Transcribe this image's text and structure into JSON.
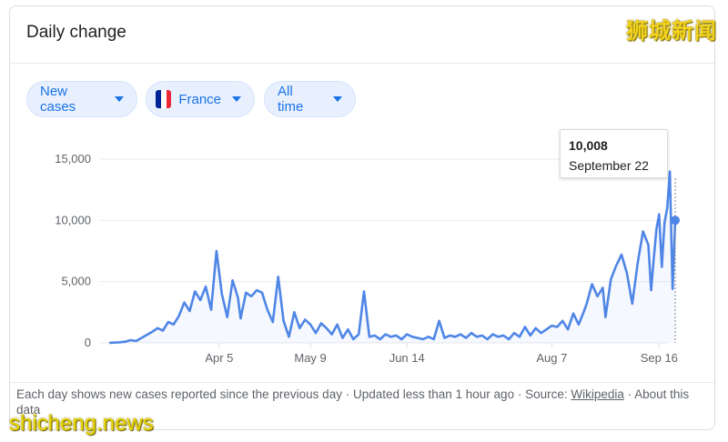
{
  "card": {
    "title": "Daily change"
  },
  "filters": {
    "metric": "New cases",
    "country": "France",
    "range": "All time"
  },
  "colors": {
    "line": "#4f86e6",
    "flag_blue": "#002395",
    "flag_white": "#ffffff",
    "flag_red": "#ed2939",
    "chip_text": "#1a73e8"
  },
  "tooltip": {
    "value": "10,008",
    "date": "September 22"
  },
  "footer": {
    "text": "Each day shows new cases reported since the previous day · Updated less than 1 hour ago · Source: ",
    "source_link": "Wikipedia",
    "after": " · About this data"
  },
  "watermarks": {
    "top": "狮城新闻",
    "bottom": "shicheng.news"
  },
  "chart_data": {
    "type": "line",
    "title": "Daily change",
    "xlabel": "",
    "ylabel": "",
    "ylim": [
      0,
      15000
    ],
    "yticks": [
      0,
      5000,
      10000,
      15000
    ],
    "ytick_labels": [
      "0",
      "5,000",
      "10,000",
      "15,000"
    ],
    "x_start": "2020-02-24",
    "x_end": "2020-09-22",
    "xticks": [
      "Apr 5",
      "May 9",
      "Jun 14",
      "Aug 7",
      "Sep 16"
    ],
    "xtick_dates": [
      "2020-04-05",
      "2020-05-09",
      "2020-06-14",
      "2020-08-07",
      "2020-09-16"
    ],
    "grid": true,
    "highlight": {
      "date": "2020-09-22",
      "value": 10008
    },
    "series": [
      {
        "name": "",
        "points": [
          [
            "2020-02-24",
            0
          ],
          [
            "2020-02-26",
            20
          ],
          [
            "2020-02-28",
            50
          ],
          [
            "2020-03-01",
            100
          ],
          [
            "2020-03-03",
            220
          ],
          [
            "2020-03-05",
            150
          ],
          [
            "2020-03-07",
            400
          ],
          [
            "2020-03-09",
            650
          ],
          [
            "2020-03-11",
            900
          ],
          [
            "2020-03-13",
            1200
          ],
          [
            "2020-03-15",
            1000
          ],
          [
            "2020-03-17",
            1700
          ],
          [
            "2020-03-19",
            1500
          ],
          [
            "2020-03-21",
            2200
          ],
          [
            "2020-03-23",
            3300
          ],
          [
            "2020-03-25",
            2600
          ],
          [
            "2020-03-27",
            4200
          ],
          [
            "2020-03-29",
            3500
          ],
          [
            "2020-03-31",
            4600
          ],
          [
            "2020-04-02",
            2700
          ],
          [
            "2020-04-04",
            7500
          ],
          [
            "2020-04-06",
            4000
          ],
          [
            "2020-04-08",
            2100
          ],
          [
            "2020-04-10",
            5100
          ],
          [
            "2020-04-12",
            3700
          ],
          [
            "2020-04-13",
            2000
          ],
          [
            "2020-04-15",
            4100
          ],
          [
            "2020-04-17",
            3800
          ],
          [
            "2020-04-19",
            4300
          ],
          [
            "2020-04-21",
            4100
          ],
          [
            "2020-04-23",
            2700
          ],
          [
            "2020-04-25",
            1700
          ],
          [
            "2020-04-27",
            5400
          ],
          [
            "2020-04-29",
            1800
          ],
          [
            "2020-05-01",
            500
          ],
          [
            "2020-05-03",
            2500
          ],
          [
            "2020-05-05",
            1200
          ],
          [
            "2020-05-07",
            1900
          ],
          [
            "2020-05-09",
            1500
          ],
          [
            "2020-05-11",
            800
          ],
          [
            "2020-05-13",
            1600
          ],
          [
            "2020-05-15",
            1200
          ],
          [
            "2020-05-17",
            700
          ],
          [
            "2020-05-19",
            1500
          ],
          [
            "2020-05-21",
            400
          ],
          [
            "2020-05-23",
            1100
          ],
          [
            "2020-05-25",
            300
          ],
          [
            "2020-05-27",
            700
          ],
          [
            "2020-05-29",
            4200
          ],
          [
            "2020-05-31",
            500
          ],
          [
            "2020-06-02",
            600
          ],
          [
            "2020-06-04",
            300
          ],
          [
            "2020-06-06",
            700
          ],
          [
            "2020-06-08",
            500
          ],
          [
            "2020-06-10",
            600
          ],
          [
            "2020-06-12",
            300
          ],
          [
            "2020-06-14",
            700
          ],
          [
            "2020-06-16",
            500
          ],
          [
            "2020-06-18",
            400
          ],
          [
            "2020-06-20",
            300
          ],
          [
            "2020-06-22",
            500
          ],
          [
            "2020-06-24",
            300
          ],
          [
            "2020-06-26",
            1800
          ],
          [
            "2020-06-28",
            400
          ],
          [
            "2020-06-30",
            600
          ],
          [
            "2020-07-02",
            500
          ],
          [
            "2020-07-04",
            700
          ],
          [
            "2020-07-06",
            400
          ],
          [
            "2020-07-08",
            800
          ],
          [
            "2020-07-10",
            500
          ],
          [
            "2020-07-12",
            600
          ],
          [
            "2020-07-14",
            300
          ],
          [
            "2020-07-16",
            700
          ],
          [
            "2020-07-18",
            500
          ],
          [
            "2020-07-20",
            600
          ],
          [
            "2020-07-22",
            300
          ],
          [
            "2020-07-24",
            800
          ],
          [
            "2020-07-26",
            500
          ],
          [
            "2020-07-28",
            1300
          ],
          [
            "2020-07-30",
            600
          ],
          [
            "2020-08-01",
            1200
          ],
          [
            "2020-08-03",
            800
          ],
          [
            "2020-08-05",
            1100
          ],
          [
            "2020-08-07",
            1400
          ],
          [
            "2020-08-09",
            1300
          ],
          [
            "2020-08-11",
            1800
          ],
          [
            "2020-08-13",
            1100
          ],
          [
            "2020-08-15",
            2400
          ],
          [
            "2020-08-17",
            1500
          ],
          [
            "2020-08-19",
            2600
          ],
          [
            "2020-08-20",
            3200
          ],
          [
            "2020-08-22",
            4800
          ],
          [
            "2020-08-24",
            3800
          ],
          [
            "2020-08-26",
            4500
          ],
          [
            "2020-08-27",
            2100
          ],
          [
            "2020-08-29",
            5200
          ],
          [
            "2020-08-31",
            6300
          ],
          [
            "2020-09-02",
            7200
          ],
          [
            "2020-09-04",
            5700
          ],
          [
            "2020-09-06",
            3200
          ],
          [
            "2020-09-08",
            6500
          ],
          [
            "2020-09-10",
            9100
          ],
          [
            "2020-09-12",
            8000
          ],
          [
            "2020-09-13",
            4300
          ],
          [
            "2020-09-14",
            6900
          ],
          [
            "2020-09-15",
            9300
          ],
          [
            "2020-09-16",
            10500
          ],
          [
            "2020-09-17",
            6200
          ],
          [
            "2020-09-18",
            9800
          ],
          [
            "2020-09-19",
            11000
          ],
          [
            "2020-09-20",
            14000
          ],
          [
            "2020-09-21",
            4400
          ],
          [
            "2020-09-22",
            10008
          ]
        ]
      }
    ]
  }
}
